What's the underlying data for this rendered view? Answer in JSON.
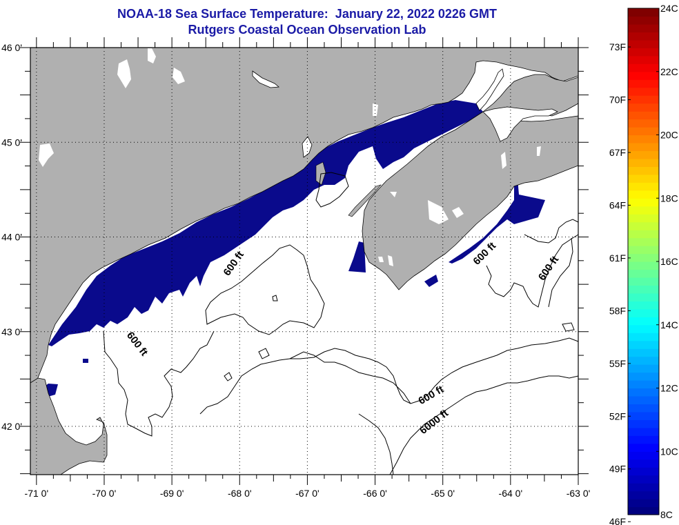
{
  "header": {
    "title": "NOAA-18 Sea Surface Temperature:  January 22, 2022 0226 GMT",
    "subtitle": "Rutgers Coastal Ocean Observation Lab"
  },
  "map": {
    "lon_range": [
      -71.09,
      -63
    ],
    "lat_range": [
      41.49,
      46
    ],
    "lon_ticks": [
      {
        "value": -71,
        "label": "-71 0'"
      },
      {
        "value": -70,
        "label": "-70 0'"
      },
      {
        "value": -69,
        "label": "-69 0'"
      },
      {
        "value": -68,
        "label": "-68 0'"
      },
      {
        "value": -67,
        "label": "-67 0'"
      },
      {
        "value": -66,
        "label": "-66 0'"
      },
      {
        "value": -65,
        "label": "-65 0'"
      },
      {
        "value": -64,
        "label": "-64 0'"
      },
      {
        "value": -63,
        "label": "-63 0'"
      }
    ],
    "lat_ticks": [
      {
        "value": 46,
        "label": "46 0'"
      },
      {
        "value": 45,
        "label": "45 0'"
      },
      {
        "value": 44,
        "label": "44 0'"
      },
      {
        "value": 43,
        "label": "43 0'"
      },
      {
        "value": 42,
        "label": "42 0'"
      }
    ],
    "contour_labels": [
      {
        "text": "600 ft",
        "lon": -68.05,
        "lat": 43.7,
        "angle": -55
      },
      {
        "text": "600 ft",
        "lon": -69.55,
        "lat": 42.85,
        "angle": 52
      },
      {
        "text": "600 ft",
        "lon": -64.35,
        "lat": 43.8,
        "angle": -45
      },
      {
        "text": "600 ft",
        "lon": -63.4,
        "lat": 43.65,
        "angle": -55
      },
      {
        "text": "600 ft",
        "lon": -65.15,
        "lat": 42.3,
        "angle": -30
      },
      {
        "text": "6000 ft",
        "lon": -65.1,
        "lat": 42.02,
        "angle": -38
      }
    ],
    "colors": {
      "land": "#b0b0b0",
      "sst_cold": "#0a0a8c",
      "water_nodata": "#ffffff",
      "grid": "#000000"
    }
  },
  "colorbar": {
    "min_c": 8,
    "max_c": 24,
    "celsius_ticks": [
      {
        "value": 24,
        "label": "24C"
      },
      {
        "value": 22,
        "label": "22C"
      },
      {
        "value": 20,
        "label": "20C"
      },
      {
        "value": 18,
        "label": "18C"
      },
      {
        "value": 16,
        "label": "16C"
      },
      {
        "value": 14,
        "label": "14C"
      },
      {
        "value": 12,
        "label": "12C"
      },
      {
        "value": 10,
        "label": "10C"
      },
      {
        "value": 8,
        "label": "8C"
      }
    ],
    "fahrenheit_ticks": [
      {
        "value": 73,
        "label": "73F"
      },
      {
        "value": 70,
        "label": "70F"
      },
      {
        "value": 67,
        "label": "67F"
      },
      {
        "value": 64,
        "label": "64F"
      },
      {
        "value": 61,
        "label": "61F"
      },
      {
        "value": 58,
        "label": "58F"
      },
      {
        "value": 55,
        "label": "55F"
      },
      {
        "value": 52,
        "label": "52F"
      },
      {
        "value": 49,
        "label": "49F"
      },
      {
        "value": 46,
        "label": "46F"
      }
    ]
  }
}
